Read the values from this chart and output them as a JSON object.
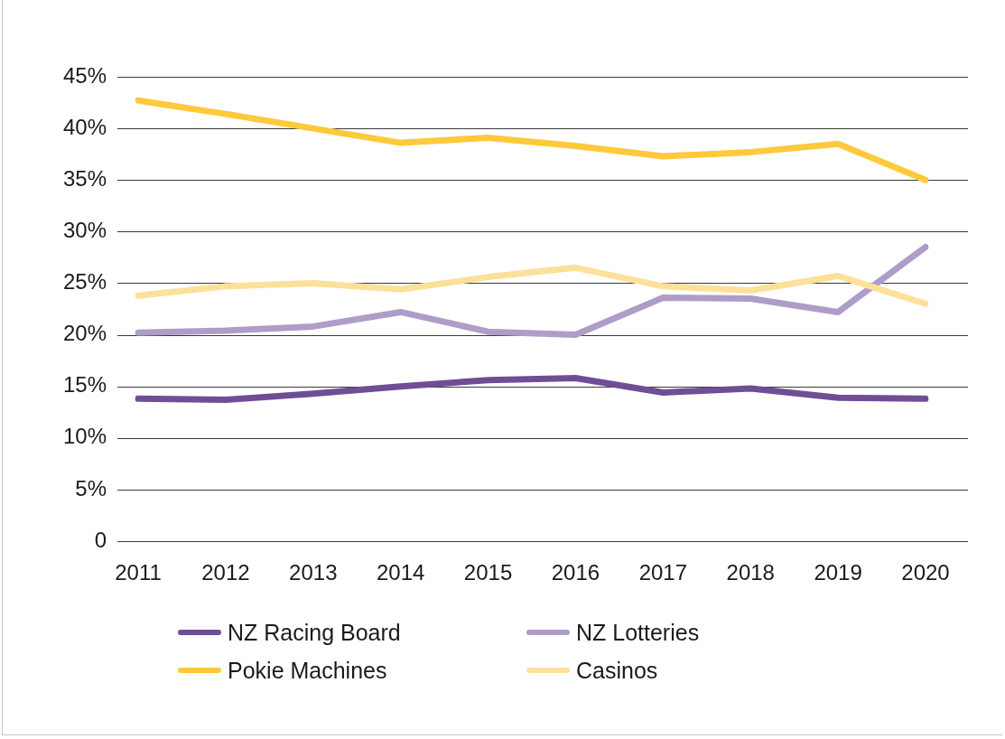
{
  "chart_data": {
    "type": "line",
    "categories": [
      "2011",
      "2012",
      "2013",
      "2014",
      "2015",
      "2016",
      "2017",
      "2018",
      "2019",
      "2020"
    ],
    "series": [
      {
        "name": "NZ Racing Board",
        "color": "#6f4e96",
        "values": [
          13.8,
          13.7,
          14.3,
          15.0,
          15.6,
          15.8,
          14.4,
          14.8,
          13.9,
          13.8
        ]
      },
      {
        "name": "NZ Lotteries",
        "color": "#ae9dc8",
        "values": [
          20.2,
          20.4,
          20.8,
          22.2,
          20.3,
          20.0,
          23.6,
          23.5,
          22.2,
          28.5
        ]
      },
      {
        "name": "Pokie Machines",
        "color": "#ffc93c",
        "values": [
          42.7,
          41.4,
          40.0,
          38.6,
          39.1,
          38.3,
          37.3,
          37.7,
          38.5,
          35.0
        ]
      },
      {
        "name": "Casinos",
        "color": "#fde09a",
        "values": [
          23.8,
          24.7,
          25.0,
          24.4,
          25.6,
          26.5,
          24.7,
          24.3,
          25.7,
          23.0
        ]
      }
    ],
    "ylim": [
      0,
      45
    ],
    "yticks": [
      0,
      {
        "value": 5,
        "label": "5%"
      },
      {
        "value": 10,
        "label": "10%"
      },
      {
        "value": 15,
        "label": "15%"
      },
      {
        "value": 20,
        "label": "20%"
      },
      {
        "value": 25,
        "label": "25%"
      },
      {
        "value": 30,
        "label": "30%"
      },
      {
        "value": 35,
        "label": "35%"
      },
      {
        "value": 40,
        "label": "40%"
      },
      {
        "value": 45,
        "label": "45%"
      }
    ],
    "grid": "y",
    "legend": "bottom",
    "marker": "none",
    "line_style": "solid"
  }
}
